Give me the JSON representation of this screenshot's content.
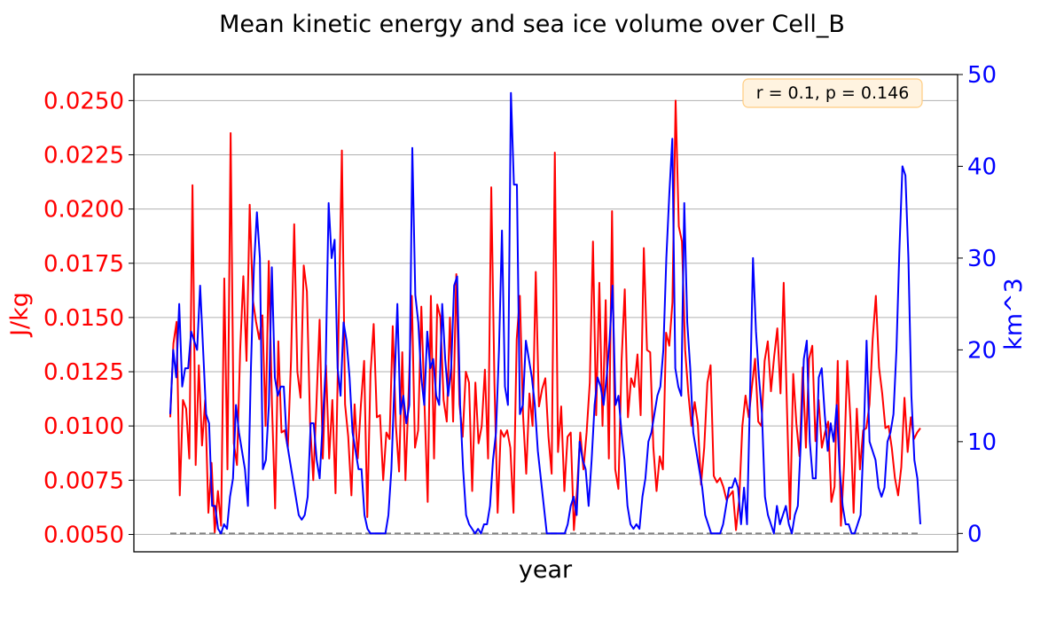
{
  "chart_data": {
    "type": "line",
    "title": "Mean kinetic energy and sea ice volume over Cell_B",
    "xlabel": "year",
    "ylabel_left": "J/kg",
    "ylabel_right": "km^3",
    "annotation": "r = 0.1, p = 0.146",
    "left_axis": {
      "ylim": [
        0.0042,
        0.0262
      ],
      "ticks": [
        "0.0050",
        "0.0075",
        "0.0100",
        "0.0125",
        "0.0150",
        "0.0175",
        "0.0200",
        "0.0225",
        "0.0250"
      ],
      "color": "#ff0000"
    },
    "right_axis": {
      "ylim": [
        -2,
        50
      ],
      "ticks": [
        "0",
        "10",
        "20",
        "30",
        "40",
        "50"
      ],
      "color": "#0000ff"
    },
    "grid": "horizontal",
    "reference_line": {
      "axis": "right",
      "value": 0,
      "style": "dashed",
      "color": "#808080"
    },
    "x_count": 248,
    "series": [
      {
        "name": "J/kg",
        "axis": "left",
        "color": "#ff0000",
        "values": [
          0.0104,
          0.0138,
          0.0148,
          0.0068,
          0.0112,
          0.0108,
          0.0085,
          0.0211,
          0.0082,
          0.0128,
          0.0091,
          0.0112,
          0.006,
          0.0083,
          0.0051,
          0.007,
          0.0054,
          0.0168,
          0.008,
          0.0235,
          0.0092,
          0.0082,
          0.0135,
          0.0169,
          0.013,
          0.0202,
          0.0158,
          0.0148,
          0.014,
          0.0151,
          0.01,
          0.0176,
          0.011,
          0.0062,
          0.0139,
          0.0097,
          0.0098,
          0.009,
          0.013,
          0.0193,
          0.0125,
          0.0113,
          0.0174,
          0.0162,
          0.0101,
          0.0075,
          0.011,
          0.0149,
          0.0085,
          0.0128,
          0.0085,
          0.0112,
          0.0069,
          0.0148,
          0.0227,
          0.011,
          0.0095,
          0.0068,
          0.011,
          0.0085,
          0.011,
          0.013,
          0.0058,
          0.0124,
          0.0147,
          0.0104,
          0.0105,
          0.0075,
          0.0097,
          0.0094,
          0.0146,
          0.01,
          0.0079,
          0.0134,
          0.0075,
          0.0115,
          0.016,
          0.009,
          0.0098,
          0.0155,
          0.011,
          0.0065,
          0.016,
          0.0085,
          0.0156,
          0.015,
          0.0112,
          0.0102,
          0.015,
          0.0102,
          0.017,
          0.011,
          0.0095,
          0.0125,
          0.012,
          0.007,
          0.012,
          0.0092,
          0.01,
          0.0126,
          0.0085,
          0.021,
          0.012,
          0.006,
          0.0098,
          0.0095,
          0.0098,
          0.009,
          0.006,
          0.014,
          0.016,
          0.0105,
          0.0078,
          0.0115,
          0.01,
          0.0171,
          0.0109,
          0.0117,
          0.0122,
          0.0095,
          0.0078,
          0.0226,
          0.0088,
          0.0109,
          0.007,
          0.0095,
          0.0097,
          0.0052,
          0.0071,
          0.0097,
          0.008,
          0.0097,
          0.012,
          0.0185,
          0.0105,
          0.0166,
          0.01,
          0.0158,
          0.0085,
          0.0199,
          0.008,
          0.0071,
          0.013,
          0.0163,
          0.0104,
          0.0122,
          0.0118,
          0.0133,
          0.0105,
          0.0182,
          0.0135,
          0.0134,
          0.009,
          0.007,
          0.0086,
          0.008,
          0.0143,
          0.0137,
          0.0157,
          0.025,
          0.0192,
          0.0185,
          0.0135,
          0.0115,
          0.01,
          0.0111,
          0.0101,
          0.0073,
          0.009,
          0.012,
          0.0128,
          0.0077,
          0.0074,
          0.0076,
          0.0072,
          0.0066,
          0.0068,
          0.007,
          0.0052,
          0.0066,
          0.01,
          0.0114,
          0.0104,
          0.0118,
          0.0131,
          0.0102,
          0.01,
          0.013,
          0.0139,
          0.0116,
          0.0132,
          0.0145,
          0.0115,
          0.0166,
          0.011,
          0.0057,
          0.0124,
          0.0101,
          0.0086,
          0.0127,
          0.009,
          0.0131,
          0.0137,
          0.0093,
          0.0112,
          0.009,
          0.0097,
          0.0102,
          0.0065,
          0.0072,
          0.013,
          0.0054,
          0.0082,
          0.013,
          0.0103,
          0.006,
          0.0108,
          0.008,
          0.0098,
          0.0099,
          0.011,
          0.014,
          0.016,
          0.0127,
          0.0115,
          0.0099,
          0.01,
          0.009,
          0.0076,
          0.0068,
          0.0081,
          0.0113,
          0.0088,
          0.0104,
          0.0094,
          0.0097,
          0.0099
        ]
      },
      {
        "name": "km^3",
        "axis": "right",
        "color": "#0000ff",
        "values": [
          13,
          20,
          17,
          25,
          16,
          18,
          18,
          22,
          21,
          20,
          27,
          20,
          13,
          12,
          3,
          3,
          0.5,
          0,
          1,
          0.5,
          4,
          6,
          14,
          11,
          9,
          7,
          3,
          18,
          29,
          35,
          30,
          7,
          8,
          14,
          29,
          17,
          15,
          16,
          16,
          10,
          8,
          6,
          4,
          2,
          1.5,
          2,
          4,
          12,
          12,
          8,
          6,
          12,
          18,
          36,
          30,
          32,
          18,
          15,
          23,
          21,
          17,
          11,
          9,
          7,
          7,
          2,
          0.5,
          0,
          0,
          0,
          0,
          0,
          0,
          2,
          7,
          16,
          25,
          13,
          15,
          12,
          14,
          42,
          26,
          23,
          17,
          14,
          22,
          18,
          19,
          15,
          14,
          25,
          19,
          15,
          18,
          27,
          28,
          14,
          7,
          2,
          1,
          0.5,
          0,
          0.5,
          0,
          1,
          1,
          3,
          8,
          11,
          20,
          33,
          16,
          14,
          48,
          38,
          38,
          13,
          14,
          21,
          19,
          17,
          14,
          9,
          6,
          3,
          0,
          0,
          0,
          0,
          0,
          0,
          0,
          1,
          3,
          4,
          2,
          10,
          8,
          7,
          3,
          8,
          14,
          17,
          16,
          14,
          17,
          21,
          27,
          14,
          15,
          11,
          8,
          3,
          1,
          0.5,
          1,
          0.5,
          4,
          6,
          10,
          11,
          13,
          15,
          16,
          20,
          30,
          37,
          43,
          18,
          16,
          15,
          36,
          23,
          18,
          11,
          9,
          7,
          5,
          2,
          1,
          0,
          0,
          0,
          0,
          1,
          3,
          5,
          5,
          6,
          5,
          1,
          5,
          1,
          15,
          30,
          22,
          17,
          13,
          4,
          2,
          1,
          0,
          3,
          1,
          2,
          3,
          1,
          0,
          2,
          3,
          10,
          19,
          21,
          10,
          6,
          6,
          17,
          18,
          13,
          9,
          12,
          10,
          14,
          7,
          3,
          1,
          1,
          0,
          0,
          1,
          2,
          10,
          21,
          10,
          9,
          8,
          5,
          4,
          5,
          10,
          11,
          13,
          20,
          31,
          40,
          39,
          30,
          15,
          8,
          6,
          1
        ]
      }
    ]
  }
}
